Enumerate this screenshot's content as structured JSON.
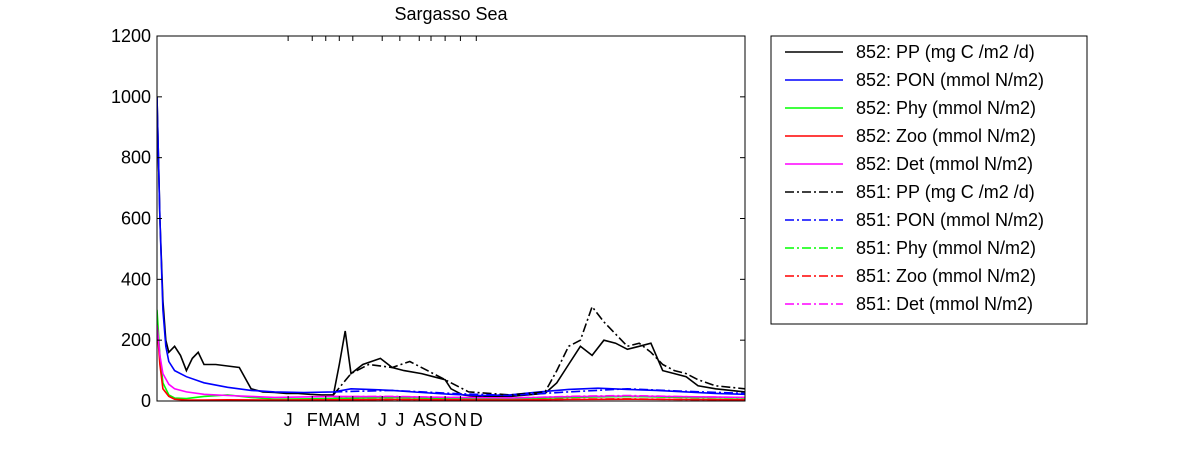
{
  "chart_data": {
    "type": "line",
    "title": "Sargasso Sea",
    "xlabel": "",
    "ylabel": "",
    "ylim": [
      0,
      1200
    ],
    "xlim": [
      0,
      1
    ],
    "y_ticks": [
      0,
      200,
      400,
      600,
      800,
      1000,
      1200
    ],
    "y_tick_labels": [
      "0",
      "200",
      "400",
      "600",
      "800",
      "1000",
      "1200"
    ],
    "x_tick_labels": [
      "J",
      "F",
      "M",
      "A",
      "M",
      "J",
      "J",
      "A",
      "S",
      "O",
      "N",
      "D"
    ],
    "x_tick_positions": [
      0.223,
      0.264,
      0.287,
      0.31,
      0.333,
      0.383,
      0.413,
      0.446,
      0.466,
      0.49,
      0.516,
      0.543
    ],
    "grid": false,
    "legend_position": "outside-right",
    "series": [
      {
        "name": "852: PP (mg C /m2 /d)",
        "color": "#000000",
        "dash": "solid",
        "x": [
          0.0,
          0.005,
          0.01,
          0.015,
          0.02,
          0.03,
          0.04,
          0.05,
          0.06,
          0.07,
          0.08,
          0.1,
          0.12,
          0.14,
          0.16,
          0.18,
          0.2,
          0.22,
          0.24,
          0.26,
          0.28,
          0.3,
          0.31,
          0.32,
          0.33,
          0.35,
          0.38,
          0.4,
          0.42,
          0.45,
          0.47,
          0.49,
          0.5,
          0.52,
          0.54,
          0.6,
          0.66,
          0.68,
          0.7,
          0.72,
          0.74,
          0.76,
          0.78,
          0.8,
          0.82,
          0.84,
          0.86,
          0.88,
          0.9,
          0.92,
          0.95,
          1.0
        ],
        "y": [
          1000,
          600,
          330,
          200,
          160,
          180,
          150,
          100,
          140,
          160,
          120,
          120,
          115,
          110,
          40,
          30,
          28,
          25,
          25,
          22,
          20,
          20,
          120,
          230,
          90,
          120,
          140,
          110,
          100,
          90,
          80,
          70,
          40,
          20,
          15,
          15,
          25,
          60,
          120,
          180,
          150,
          200,
          190,
          170,
          180,
          190,
          100,
          90,
          80,
          50,
          40,
          30
        ]
      },
      {
        "name": "852: PON (mmol N/m2)",
        "color": "#0000ff",
        "dash": "solid",
        "x": [
          0.0,
          0.005,
          0.01,
          0.015,
          0.02,
          0.03,
          0.05,
          0.08,
          0.12,
          0.16,
          0.2,
          0.25,
          0.3,
          0.33,
          0.36,
          0.4,
          0.45,
          0.5,
          0.55,
          0.6,
          0.65,
          0.7,
          0.75,
          0.8,
          0.85,
          0.9,
          0.95,
          1.0
        ],
        "y": [
          1000,
          600,
          300,
          180,
          130,
          100,
          80,
          60,
          45,
          35,
          30,
          28,
          30,
          40,
          38,
          35,
          28,
          22,
          18,
          20,
          30,
          38,
          42,
          38,
          35,
          30,
          25,
          22
        ]
      },
      {
        "name": "852: Phy (mmol N/m2)",
        "color": "#00ff00",
        "dash": "solid",
        "x": [
          0.0,
          0.005,
          0.01,
          0.02,
          0.03,
          0.05,
          0.08,
          0.12,
          0.16,
          0.2,
          0.3,
          0.4,
          0.5,
          0.6,
          0.7,
          0.8,
          0.9,
          1.0
        ],
        "y": [
          300,
          150,
          60,
          20,
          10,
          8,
          15,
          20,
          12,
          6,
          8,
          12,
          8,
          6,
          12,
          15,
          12,
          10
        ]
      },
      {
        "name": "852: Zoo (mmol N/m2)",
        "color": "#ff0000",
        "dash": "solid",
        "x": [
          0.0,
          0.005,
          0.01,
          0.02,
          0.03,
          0.05,
          0.08,
          0.12,
          0.2,
          0.3,
          0.4,
          0.5,
          0.6,
          0.7,
          0.8,
          0.9,
          1.0
        ],
        "y": [
          250,
          120,
          40,
          15,
          6,
          3,
          3,
          4,
          3,
          4,
          5,
          4,
          3,
          5,
          6,
          5,
          4
        ]
      },
      {
        "name": "852: Det (mmol N/m2)",
        "color": "#ff00ff",
        "dash": "solid",
        "x": [
          0.0,
          0.005,
          0.01,
          0.02,
          0.03,
          0.05,
          0.08,
          0.12,
          0.16,
          0.2,
          0.3,
          0.4,
          0.5,
          0.6,
          0.7,
          0.8,
          0.9,
          1.0
        ],
        "y": [
          250,
          150,
          90,
          55,
          40,
          30,
          22,
          18,
          15,
          12,
          15,
          14,
          12,
          10,
          14,
          16,
          14,
          12
        ]
      },
      {
        "name": "851: PP (mg C /m2 /d)",
        "color": "#000000",
        "dash": "dashdot",
        "x": [
          0.3,
          0.33,
          0.36,
          0.4,
          0.43,
          0.46,
          0.5,
          0.53,
          0.6,
          0.66,
          0.68,
          0.7,
          0.72,
          0.74,
          0.76,
          0.78,
          0.8,
          0.82,
          0.84,
          0.86,
          0.88,
          0.9,
          0.92,
          0.95,
          1.0
        ],
        "y": [
          20,
          90,
          120,
          110,
          130,
          100,
          60,
          30,
          20,
          30,
          100,
          180,
          200,
          310,
          260,
          220,
          180,
          190,
          160,
          120,
          100,
          90,
          70,
          50,
          40
        ]
      },
      {
        "name": "851: PON (mmol N/m2)",
        "color": "#0000ff",
        "dash": "dashdot",
        "x": [
          0.3,
          0.4,
          0.5,
          0.6,
          0.7,
          0.8,
          0.9,
          1.0
        ],
        "y": [
          30,
          35,
          25,
          18,
          30,
          40,
          32,
          25
        ]
      },
      {
        "name": "851: Phy (mmol N/m2)",
        "color": "#00ff00",
        "dash": "dashdot",
        "x": [
          0.3,
          0.4,
          0.5,
          0.6,
          0.7,
          0.8,
          0.9,
          1.0
        ],
        "y": [
          8,
          12,
          8,
          6,
          14,
          16,
          12,
          10
        ]
      },
      {
        "name": "851: Zoo (mmol N/m2)",
        "color": "#ff0000",
        "dash": "dashdot",
        "x": [
          0.3,
          0.4,
          0.5,
          0.6,
          0.7,
          0.8,
          0.9,
          1.0
        ],
        "y": [
          4,
          5,
          4,
          3,
          6,
          7,
          5,
          4
        ]
      },
      {
        "name": "851: Det (mmol N/m2)",
        "color": "#ff00ff",
        "dash": "dashdot",
        "x": [
          0.3,
          0.4,
          0.5,
          0.6,
          0.7,
          0.8,
          0.9,
          1.0
        ],
        "y": [
          14,
          15,
          12,
          10,
          15,
          18,
          14,
          12
        ]
      }
    ]
  }
}
